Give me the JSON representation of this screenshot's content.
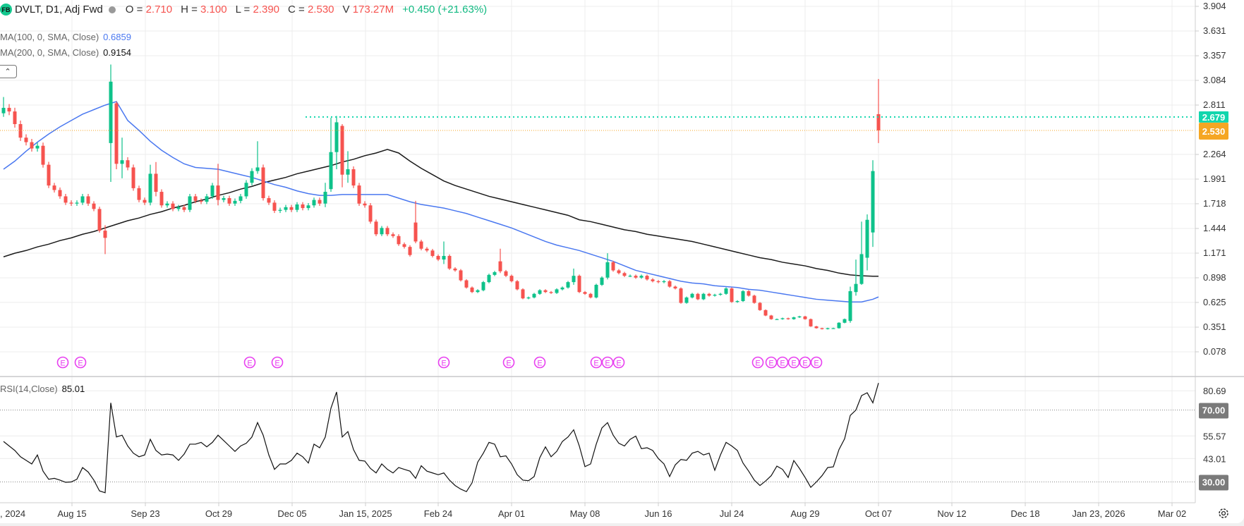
{
  "header": {
    "logo_text": "FB",
    "symbol": "DVLT, D1, Adj Fwd",
    "open_label": "O =",
    "open": "2.710",
    "high_label": "H =",
    "high": "3.100",
    "low_label": "L =",
    "low": "2.390",
    "close_label": "C =",
    "close": "2.530",
    "volume_label": "V",
    "volume": "173.27M",
    "change": "+0.450 (+21.63%)"
  },
  "indicators": {
    "ma100_label": "MA(100, 0, SMA, Close)",
    "ma100_value": "0.6859",
    "ma200_label": "MA(200, 0, SMA, Close)",
    "ma200_value": "0.9154",
    "rsi_label": "RSI(14,Close)",
    "rsi_value": "85.01",
    "collapse_icon": "chevron-up-icon"
  },
  "colors": {
    "up": "#0ec28a",
    "down": "#f6534f",
    "ma100": "#4a78f0",
    "ma200": "#1a1a1a",
    "last_price": "#f5a623",
    "high_line": "#12d6ad",
    "earnings": "#e83ff0",
    "rsi": "#111111"
  },
  "chart_data": {
    "type": "candlestick",
    "price_axis": {
      "ticks": [
        "3.904",
        "3.631",
        "3.357",
        "3.084",
        "2.811",
        "2.264",
        "1.991",
        "1.718",
        "1.444",
        "1.171",
        "0.898",
        "0.625",
        "0.351",
        "0.078"
      ],
      "range": [
        0.078,
        3.904
      ]
    },
    "x_axis": {
      "ticks": [
        ", 2024",
        "Aug 15",
        "Sep 23",
        "Oct 29",
        "Dec 05",
        "Jan 15, 2025",
        "Feb 24",
        "Apr 01",
        "May 08",
        "Jun 16",
        "Jul 24",
        "Aug 29",
        "Oct 07",
        "Nov 12",
        "Dec 18",
        "Jan 23, 2026",
        "Mar 02"
      ]
    },
    "price_lines": {
      "high_line": "2.679",
      "last_price": "2.530"
    },
    "candles": [
      [
        2.72,
        2.9,
        2.68,
        2.78
      ],
      2.74,
      2.6,
      2.45,
      2.4,
      2.33,
      2.36,
      2.15,
      1.92,
      1.87,
      1.8,
      1.73,
      1.72,
      1.73,
      1.8,
      1.72,
      1.66,
      1.42,
      [
        1.42,
        1.48,
        1.16,
        1.34
      ],
      [
        2.39,
        3.26,
        1.96,
        3.07
      ],
      [
        2.83,
        2.85,
        2.1,
        2.16
      ],
      [
        2.16,
        2.45,
        2.0,
        2.2
      ],
      2.12,
      1.89,
      1.76,
      1.73,
      [
        1.73,
        2.15,
        1.7,
        2.05
      ],
      [
        2.05,
        2.18,
        1.8,
        1.85
      ],
      1.7,
      1.72,
      1.66,
      1.68,
      1.65,
      1.8,
      1.75,
      1.74,
      1.8,
      1.92,
      [
        1.92,
        2.16,
        1.7,
        1.76
      ],
      1.78,
      1.72,
      1.75,
      1.8,
      1.95,
      2.08,
      [
        2.08,
        2.41,
        2.05,
        2.12
      ],
      1.78,
      1.73,
      1.64,
      1.65,
      1.68,
      1.65,
      1.71,
      1.67,
      1.7,
      1.76,
      1.72,
      [
        1.72,
        1.95,
        1.68,
        1.85
      ],
      [
        1.88,
        2.67,
        1.85,
        2.29
      ],
      [
        2.29,
        2.69,
        2.1,
        2.62
      ],
      [
        2.58,
        2.6,
        1.9,
        2.04
      ],
      [
        2.04,
        2.3,
        1.95,
        2.1
      ],
      1.92,
      1.72,
      1.7,
      1.52,
      1.38,
      1.45,
      1.38,
      1.36,
      1.27,
      1.24,
      1.15,
      [
        1.51,
        1.75,
        1.28,
        1.3
      ],
      1.22,
      1.2,
      1.14,
      1.1,
      [
        1.1,
        1.3,
        1.05,
        1.14
      ],
      1.0,
      0.98,
      0.87,
      0.79,
      0.74,
      0.76,
      0.85,
      0.93,
      0.96,
      [
        1.08,
        1.22,
        0.95,
        0.97
      ],
      0.92,
      0.86,
      0.77,
      0.67,
      0.68,
      0.72,
      0.76,
      0.74,
      0.73,
      0.77,
      0.79,
      0.85,
      [
        0.85,
        1.0,
        0.82,
        0.92
      ],
      0.74,
      0.72,
      0.68,
      0.82,
      0.9,
      [
        0.9,
        1.17,
        0.88,
        1.07
      ],
      0.98,
      0.95,
      0.92,
      0.92,
      0.9,
      0.92,
      0.88,
      0.86,
      0.85,
      0.86,
      0.8,
      0.78,
      0.62,
      0.68,
      0.72,
      0.66,
      0.72,
      0.7,
      0.71,
      0.72,
      0.78,
      0.63,
      0.64,
      0.75,
      0.7,
      0.62,
      0.54,
      0.48,
      0.44,
      0.44,
      0.45,
      0.44,
      0.46,
      0.47,
      0.44,
      0.36,
      0.34,
      0.33,
      0.34,
      0.34,
      0.4,
      0.44,
      [
        0.42,
        0.8,
        0.4,
        0.75
      ],
      [
        0.74,
        1.1,
        0.7,
        0.83
      ],
      [
        0.83,
        1.52,
        0.82,
        1.16
      ],
      [
        1.12,
        1.6,
        0.98,
        1.54
      ],
      [
        1.4,
        2.2,
        1.24,
        2.08
      ],
      [
        2.71,
        3.1,
        2.39,
        2.53
      ]
    ],
    "ma100": [
      2.1,
      2.19,
      2.3,
      2.4,
      2.49,
      2.57,
      2.64,
      2.71,
      2.76,
      2.81,
      2.85,
      2.64,
      2.53,
      2.41,
      2.31,
      2.23,
      2.16,
      2.12,
      2.11,
      2.1,
      2.07,
      2.04,
      2.01,
      1.97,
      1.93,
      1.9,
      1.86,
      1.83,
      1.81,
      1.81,
      1.82,
      1.82,
      1.82,
      1.82,
      1.82,
      1.78,
      1.74,
      1.71,
      1.69,
      1.67,
      1.64,
      1.61,
      1.57,
      1.53,
      1.49,
      1.45,
      1.4,
      1.35,
      1.3,
      1.26,
      1.23,
      1.2,
      1.16,
      1.12,
      1.08,
      1.03,
      0.98,
      0.95,
      0.92,
      0.89,
      0.86,
      0.84,
      0.83,
      0.81,
      0.8,
      0.79,
      0.77,
      0.76,
      0.74,
      0.72,
      0.7,
      0.68,
      0.66,
      0.65,
      0.64,
      0.63,
      0.63,
      0.66,
      0.6859
    ],
    "ma200": [
      1.13,
      1.17,
      1.2,
      1.24,
      1.27,
      1.31,
      1.34,
      1.38,
      1.41,
      1.45,
      1.49,
      1.53,
      1.56,
      1.6,
      1.63,
      1.67,
      1.7,
      1.74,
      1.77,
      1.81,
      1.84,
      1.88,
      1.91,
      1.95,
      1.98,
      2.01,
      2.05,
      2.08,
      2.11,
      2.14,
      2.18,
      2.21,
      2.25,
      2.28,
      2.32,
      2.28,
      2.19,
      2.11,
      2.04,
      1.97,
      1.92,
      1.88,
      1.84,
      1.8,
      1.77,
      1.74,
      1.71,
      1.68,
      1.65,
      1.62,
      1.59,
      1.54,
      1.52,
      1.49,
      1.46,
      1.43,
      1.41,
      1.38,
      1.36,
      1.34,
      1.32,
      1.3,
      1.27,
      1.24,
      1.21,
      1.18,
      1.15,
      1.12,
      1.1,
      1.07,
      1.05,
      1.03,
      1.0,
      0.98,
      0.95,
      0.93,
      0.92,
      0.915,
      0.9154
    ],
    "earnings_marker": "E",
    "rsi": {
      "ticks": [
        "80.69",
        "55.57",
        "43.01"
      ],
      "bands": [
        "70.00",
        "30.00"
      ],
      "values": [
        52.5,
        50,
        47.5,
        44,
        42,
        40,
        45,
        36,
        31.5,
        32,
        31,
        29.8,
        30,
        31.5,
        38,
        35.5,
        31,
        25,
        24,
        74,
        55,
        56,
        50,
        46,
        44,
        45,
        53.7,
        47.5,
        45,
        45.5,
        45,
        42,
        45.5,
        51,
        51,
        52,
        49.5,
        52,
        56,
        53,
        50,
        47,
        50,
        51.5,
        55,
        63,
        56,
        45,
        37,
        40,
        40,
        42,
        46,
        44,
        40.5,
        51,
        49,
        55,
        71,
        80,
        55,
        58,
        48,
        42,
        41.6,
        37.5,
        35,
        40,
        37,
        35,
        38,
        37,
        36,
        32,
        39,
        36,
        35,
        34,
        35,
        31,
        28,
        26,
        24.6,
        29.5,
        41,
        46,
        52,
        51,
        44,
        44.5,
        40,
        34,
        31,
        30.7,
        33,
        43.5,
        49.5,
        44,
        47,
        52.5,
        55,
        59,
        50,
        38.5,
        40,
        51,
        60,
        63,
        56,
        51.5,
        50,
        53.7,
        55.5,
        48.5,
        49,
        47.5,
        43,
        40,
        33,
        39.5,
        42.5,
        42,
        46,
        47,
        45,
        46,
        36.5,
        45,
        52,
        50,
        47.5,
        40.5,
        36,
        31,
        28,
        30.5,
        33.5,
        38.8,
        37,
        32.5,
        41.9,
        37.5,
        32.5,
        27,
        30,
        33.5,
        38,
        38.4,
        48,
        54,
        67,
        70,
        78,
        79.6,
        74,
        85.01
      ]
    }
  },
  "settings_icon": "gear-icon"
}
